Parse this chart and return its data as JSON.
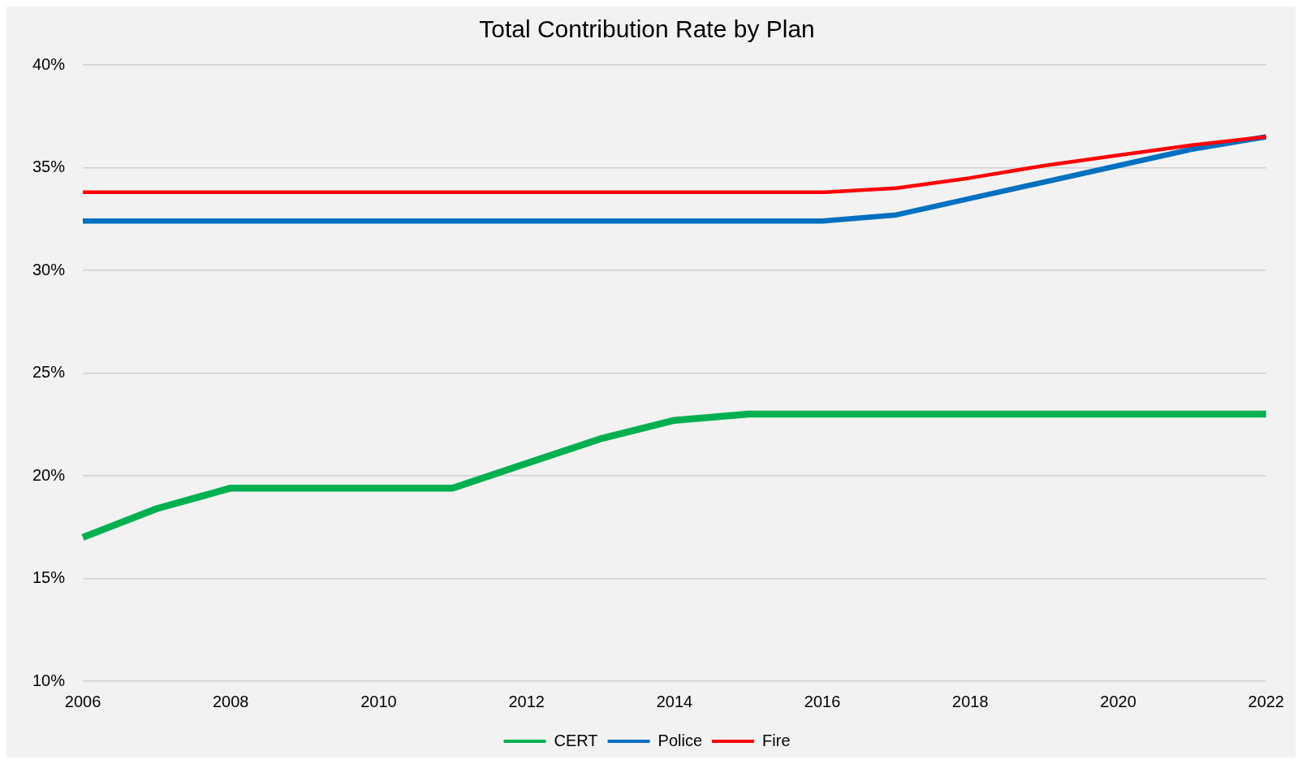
{
  "chart_data": {
    "type": "line",
    "title": "Total Contribution Rate by Plan",
    "categories": [
      "2006",
      null,
      "2008",
      null,
      "2010",
      null,
      "2012",
      null,
      "2014",
      null,
      "2016",
      null,
      "2018",
      null,
      "2020",
      null,
      "2022"
    ],
    "series": [
      {
        "name": "CERT",
        "color": "#00b050",
        "values": [
          17.0,
          18.4,
          19.4,
          19.4,
          19.4,
          19.4,
          20.6,
          21.8,
          22.7,
          23.0,
          23.0,
          23.0,
          23.0,
          23.0,
          23.0,
          23.0,
          23.0
        ]
      },
      {
        "name": "Police",
        "color": "#0070c0",
        "values": [
          32.4,
          32.4,
          32.4,
          32.4,
          32.4,
          32.4,
          32.4,
          32.4,
          32.4,
          32.4,
          32.4,
          32.7,
          33.5,
          34.3,
          35.1,
          35.9,
          36.5
        ]
      },
      {
        "name": "Fire",
        "color": "#ff0000",
        "values": [
          33.8,
          33.8,
          33.8,
          33.8,
          33.8,
          33.8,
          33.8,
          33.8,
          33.8,
          33.8,
          33.8,
          34.0,
          34.5,
          35.1,
          35.6,
          36.1,
          36.5
        ]
      }
    ],
    "ylim": [
      10,
      40
    ],
    "yticks": [
      {
        "value": 10,
        "label": "10%"
      },
      {
        "value": 15,
        "label": "15%"
      },
      {
        "value": 20,
        "label": "20%"
      },
      {
        "value": 25,
        "label": "25%"
      },
      {
        "value": 30,
        "label": "30%"
      },
      {
        "value": 35,
        "label": "35%"
      },
      {
        "value": 40,
        "label": "40%"
      }
    ],
    "grid": "y",
    "legend": "bottom",
    "marker": "none",
    "line_style": "solid"
  }
}
